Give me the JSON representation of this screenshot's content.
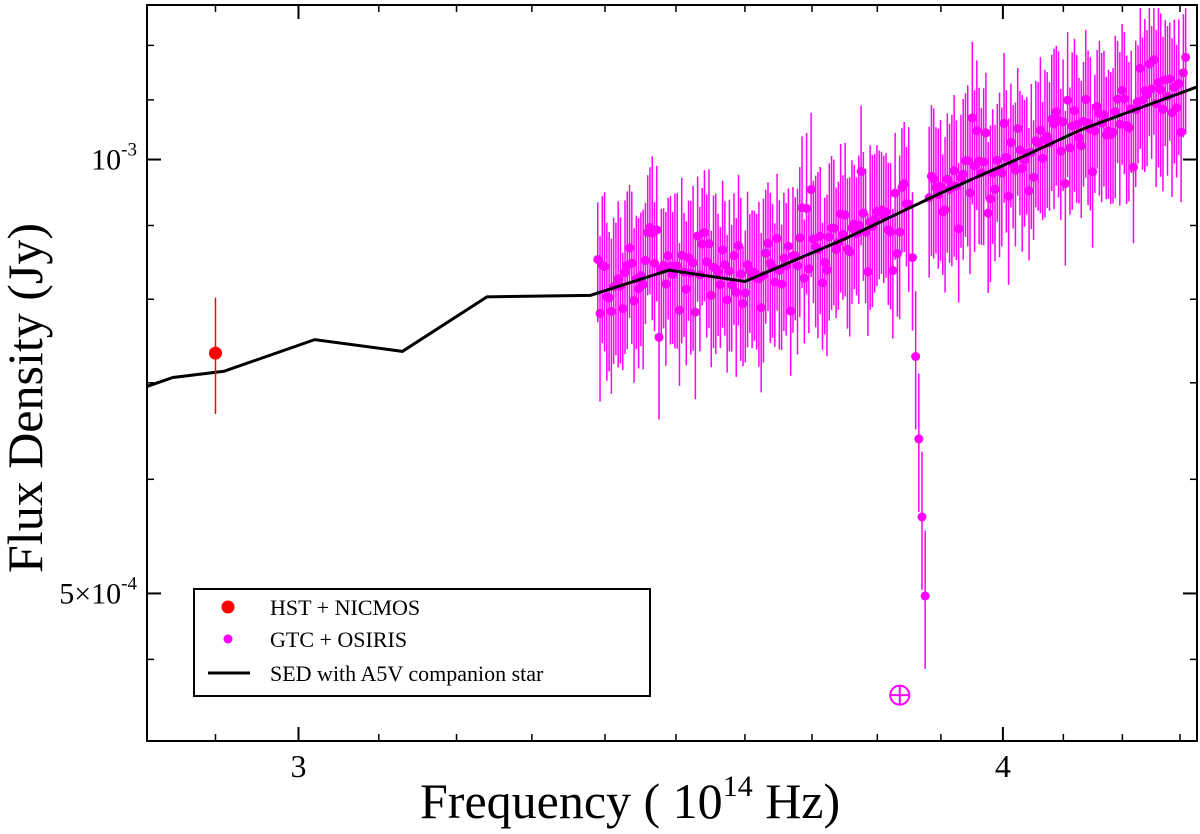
{
  "chart_data": {
    "type": "scatter",
    "title": "",
    "xlabel": "Frequency ( 10",
    "xlabel_sup": "14",
    "xlabel_unit": " Hz)",
    "ylabel": "Flux Density (Jy)",
    "x_scale": "log",
    "y_scale": "log",
    "xlim": [
      2.82,
      4.33
    ],
    "ylim": [
      0.000395,
      0.00128
    ],
    "x_ticks": [
      {
        "value": 3,
        "label": "3"
      },
      {
        "value": 4,
        "label": "4"
      }
    ],
    "y_ticks": [
      {
        "value": 0.001,
        "label_base": "10",
        "label_exp": "-3"
      },
      {
        "value": 0.0005,
        "label_base": "5×10",
        "label_exp": "-4"
      }
    ],
    "legend": {
      "position": "bottom-left",
      "entries": [
        {
          "label": "HST + NICMOS",
          "symbol": "dot",
          "color": "#ff0000"
        },
        {
          "label": "GTC + OSIRIS",
          "symbol": "small-dot",
          "color": "#ff00ff"
        },
        {
          "label": "SED with A5V companion star",
          "symbol": "line",
          "color": "#000000"
        }
      ]
    },
    "colors": {
      "hst": "#ff0000",
      "gtc": "#ff00ff",
      "sed": "#000000"
    },
    "series": [
      {
        "name": "SED with A5V companion star",
        "kind": "line",
        "points": [
          [
            2.82,
            0.000696
          ],
          [
            2.85,
            0.000706
          ],
          [
            2.91,
            0.000713
          ],
          [
            3.02,
            0.00075
          ],
          [
            3.13,
            0.000736
          ],
          [
            3.24,
            0.000803
          ],
          [
            3.38,
            0.000805
          ],
          [
            3.49,
            0.000838
          ],
          [
            3.6,
            0.000823
          ],
          [
            3.75,
            0.000881
          ],
          [
            3.9,
            0.000948
          ],
          [
            4.02,
            0.000999
          ],
          [
            4.13,
            0.001049
          ],
          [
            4.33,
            0.001123
          ]
        ]
      },
      {
        "name": "HST + NICMOS",
        "kind": "points",
        "points": [
          [
            2.9,
            0.000734,
            6.8e-05
          ]
        ]
      },
      {
        "name": "GTC + OSIRIS",
        "kind": "points",
        "x_range": [
          3.39,
          4.31
        ],
        "n_points": 260,
        "seed": 7,
        "trend": "follows SED",
        "scatter": 0.075,
        "rel_error": 0.11,
        "absorption_dip": [
          [
            3.855,
            0.000855
          ],
          [
            3.86,
            0.00073
          ],
          [
            3.865,
            0.00064
          ],
          [
            3.87,
            0.000565
          ],
          [
            3.875,
            0.000498
          ]
        ],
        "outlier_symbol": {
          "x": 3.835,
          "y": 0.000425,
          "symbol": "circle-plus"
        }
      }
    ]
  }
}
